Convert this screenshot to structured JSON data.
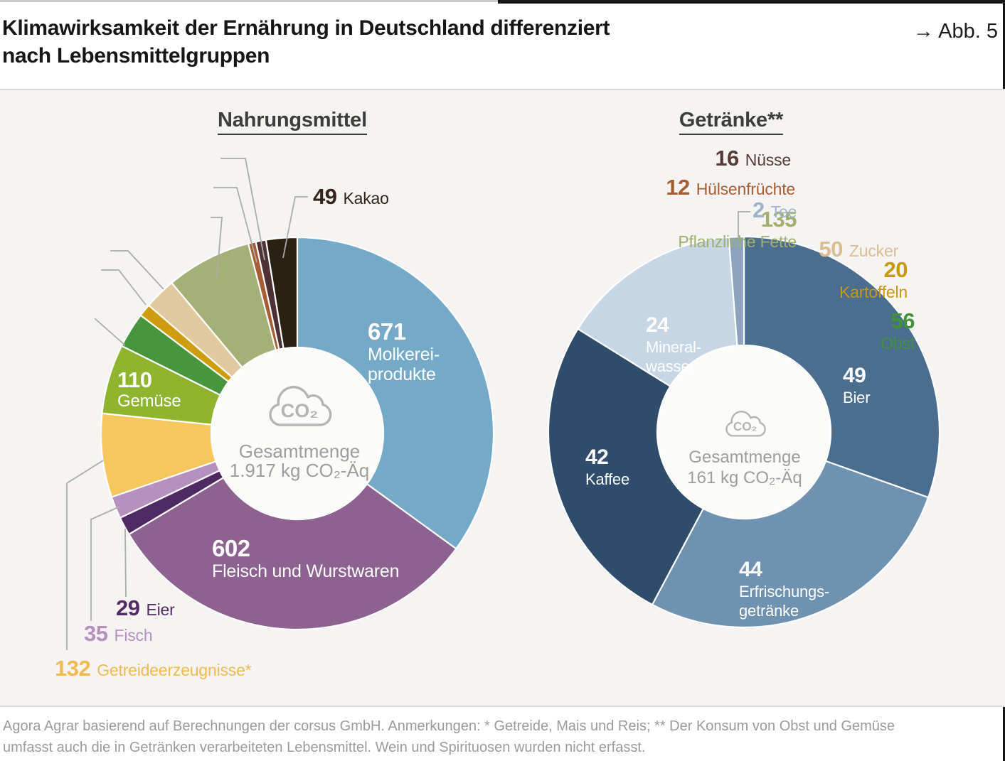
{
  "header": {
    "title_line1": "Klimawirksamkeit der Ernährung in Deutschland differenziert",
    "title_line2": "nach Lebensmittelgruppen",
    "figure_ref": "→ Abb. 5"
  },
  "footer": {
    "line1": "Agora Agrar basierend auf Berechnungen der corsus GmbH. Anmerkungen: * Getreide, Mais und Reis; ** Der Konsum von Obst und Gemüse",
    "line2": "umfasst auch die in Getränken verarbeiteten Lebensmittel. Wein und Spirituosen wurden nicht erfasst."
  },
  "chart_data": [
    {
      "id": "nahrungsmittel",
      "type": "pie",
      "variant": "donut",
      "title": "Nahrungsmittel",
      "unit": "kg CO₂-Äq",
      "total": 1917,
      "center": {
        "icon": "co2-cloud",
        "icon_text": "CO₂",
        "line1": "Gesamtmenge",
        "line2": "1.917 kg CO₂-Äq"
      },
      "segments": [
        {
          "id": "molkerei",
          "name": "Molkereiprodukte",
          "value": 671,
          "color": "#74AAC7",
          "label_lines": [
            "Molkerei-",
            "produkte"
          ],
          "placement": "inside",
          "text_color": "#FFFFFF"
        },
        {
          "id": "fleisch",
          "name": "Fleisch und Wurstwaren",
          "value": 602,
          "color": "#8D6190",
          "label_lines": [
            "Fleisch und Wurstwaren"
          ],
          "placement": "inside",
          "text_color": "#FFFFFF"
        },
        {
          "id": "eier",
          "name": "Eier",
          "value": 29,
          "color": "#4F2A62",
          "label_lines": [
            "Eier"
          ],
          "placement": "outside",
          "text_color": "#532C66"
        },
        {
          "id": "fisch",
          "name": "Fisch",
          "value": 35,
          "color": "#B690BE",
          "label_lines": [
            "Fisch"
          ],
          "placement": "outside",
          "text_color": "#B58FBE"
        },
        {
          "id": "getreide",
          "name": "Getreideerzeugnisse*",
          "value": 132,
          "color": "#F5C75E",
          "label_lines": [
            "Getreideerzeugnisse*"
          ],
          "placement": "outside",
          "text_color": "#F0BA4F"
        },
        {
          "id": "gemuese",
          "name": "Gemüse",
          "value": 110,
          "color": "#8FB52F",
          "label_lines": [
            "Gemüse"
          ],
          "placement": "inside",
          "text_color": "#FFFFFF"
        },
        {
          "id": "obst",
          "name": "Obst",
          "value": 56,
          "color": "#47963E",
          "label_lines": [
            "Obst"
          ],
          "placement": "outside",
          "text_color": "#42923C"
        },
        {
          "id": "kartoffeln",
          "name": "Kartoffeln",
          "value": 20,
          "color": "#CD9D0F",
          "label_lines": [
            "Kartoffeln"
          ],
          "placement": "outside",
          "text_color": "#C8990A"
        },
        {
          "id": "zucker",
          "name": "Zucker",
          "value": 50,
          "color": "#E1CA9F",
          "label_lines": [
            "Zucker"
          ],
          "placement": "outside",
          "text_color": "#D8BE92"
        },
        {
          "id": "pflanzliche_fette",
          "name": "Pflanzliche Fette",
          "value": 135,
          "color": "#A4B077",
          "label_lines": [
            "Pflanzliche Fette"
          ],
          "placement": "outside",
          "text_color": "#A0AE6E"
        },
        {
          "id": "huelsenfruechte",
          "name": "Hülsenfrüchte",
          "value": 12,
          "color": "#A65D33",
          "label_lines": [
            "Hülsenfrüchte"
          ],
          "placement": "outside",
          "text_color": "#A65D33"
        },
        {
          "id": "nuesse",
          "name": "Nüsse",
          "value": 16,
          "color": "#4E3135",
          "label_lines": [
            "Nüsse"
          ],
          "placement": "outside",
          "text_color": "#5A3A36"
        },
        {
          "id": "kakao",
          "name": "Kakao",
          "value": 49,
          "color": "#2A2113",
          "label_lines": [
            "Kakao"
          ],
          "placement": "outside",
          "text_color": "#342318"
        }
      ]
    },
    {
      "id": "getraenke",
      "type": "pie",
      "variant": "donut",
      "title": "Getränke**",
      "unit": "kg CO₂-Äq",
      "total": 161,
      "center": {
        "icon": "co2-cloud",
        "icon_text": "CO₂",
        "line1": "Gesamtmenge",
        "line2": "161 kg CO₂-Äq"
      },
      "segments": [
        {
          "id": "bier",
          "name": "Bier",
          "value": 49,
          "color": "#4B6E8F",
          "label_lines": [
            "Bier"
          ],
          "placement": "inside",
          "text_color": "#FFFFFF"
        },
        {
          "id": "erfrischungsgetraenke",
          "name": "Erfrischungsgetränke",
          "value": 44,
          "color": "#6F92B0",
          "label_lines": [
            "Erfrischungs-",
            "getränke"
          ],
          "placement": "inside",
          "text_color": "#FFFFFF"
        },
        {
          "id": "kaffee",
          "name": "Kaffee",
          "value": 42,
          "color": "#2F4C6A",
          "label_lines": [
            "Kaffee"
          ],
          "placement": "inside",
          "text_color": "#FFFFFF"
        },
        {
          "id": "mineralwasser",
          "name": "Mineralwasser",
          "value": 24,
          "color": "#C7D6E5",
          "label_lines": [
            "Mineral-",
            "wasser"
          ],
          "placement": "inside",
          "text_color": "#FFFFFF"
        },
        {
          "id": "tee",
          "name": "Tee",
          "value": 2,
          "color": "#8CA3BE",
          "label_lines": [
            "Tee"
          ],
          "placement": "outside",
          "text_color": "#9FB4CC"
        }
      ]
    }
  ]
}
